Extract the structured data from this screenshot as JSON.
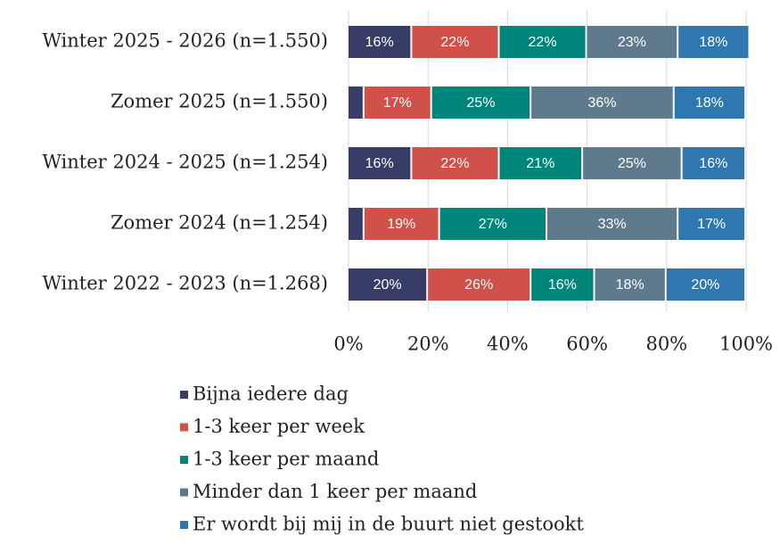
{
  "chart_data": {
    "type": "stacked-bar-horizontal",
    "categories": [
      "Winter 2025 - 2026 (n=1.550)",
      "Zomer 2025 (n=1.550)",
      "Winter 2024 - 2025 (n=1.254)",
      "Zomer 2024 (n=1.254)",
      "Winter 2022 - 2023 (n=1.268)"
    ],
    "series": [
      {
        "name": "Bijna iedere dag",
        "color": "#383d68",
        "values": [
          16,
          4,
          16,
          4,
          20
        ],
        "value_labels": [
          "16%",
          null,
          "16%",
          null,
          "20%"
        ]
      },
      {
        "name": "1-3 keer per week",
        "color": "#d0504a",
        "values": [
          22,
          17,
          22,
          19,
          26
        ],
        "value_labels": [
          "22%",
          "17%",
          "22%",
          "19%",
          "26%"
        ]
      },
      {
        "name": "1-3 keer per maand",
        "color": "#00857a",
        "values": [
          22,
          25,
          21,
          27,
          16
        ],
        "value_labels": [
          "22%",
          "25%",
          "21%",
          "27%",
          "16%"
        ]
      },
      {
        "name": "Minder dan 1 keer per maand",
        "color": "#5f7a8c",
        "values": [
          23,
          36,
          25,
          33,
          18
        ],
        "value_labels": [
          "23%",
          "36%",
          "25%",
          "33%",
          "18%"
        ]
      },
      {
        "name": "Er wordt bij mij in de buurt niet gestookt",
        "color": "#2f77af",
        "values": [
          18,
          18,
          16,
          17,
          20
        ],
        "value_labels": [
          "18%",
          "18%",
          "16%",
          "17%",
          "20%"
        ]
      }
    ],
    "xlim": [
      0,
      100
    ],
    "xticks": [
      {
        "value": 0,
        "label": "0%"
      },
      {
        "value": 20,
        "label": "20%"
      },
      {
        "value": 40,
        "label": "40%"
      },
      {
        "value": 60,
        "label": "60%"
      },
      {
        "value": 80,
        "label": "80%"
      },
      {
        "value": 100,
        "label": "100%"
      }
    ],
    "grid": true,
    "legend": "bottom"
  }
}
